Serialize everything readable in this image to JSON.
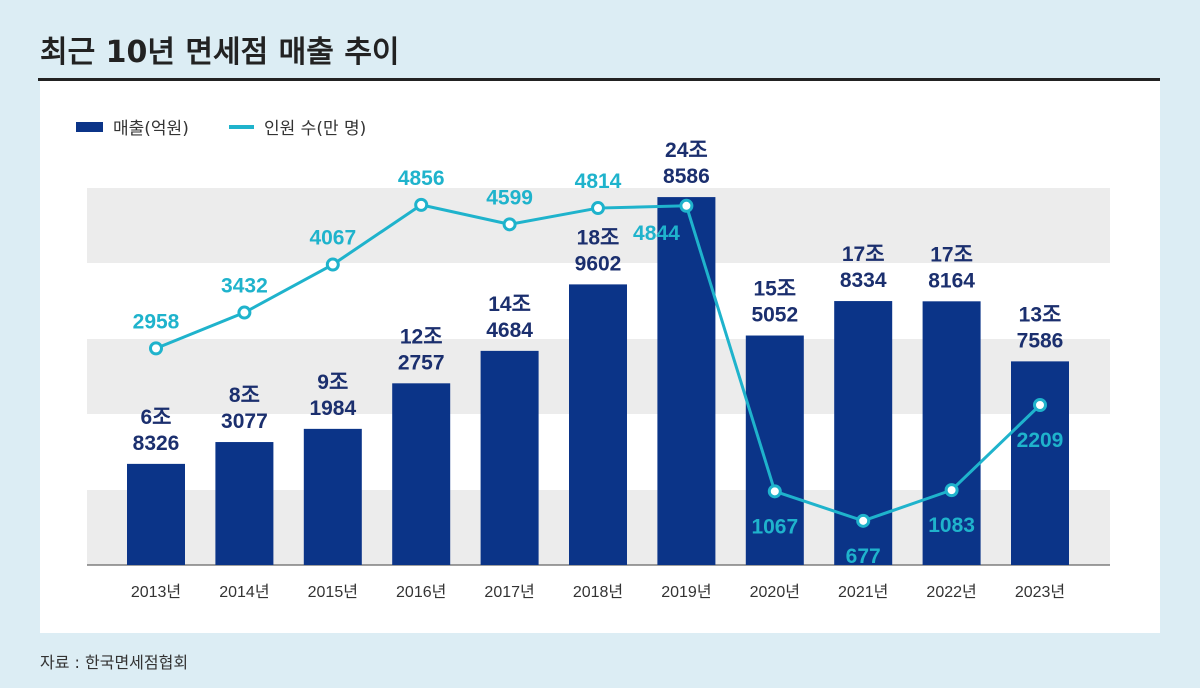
{
  "title": "최근 10년 면세점 매출 추이",
  "source": "자료 : 한국면세점협회",
  "colors": {
    "bar": "#0b3488",
    "line": "#1fb3cc",
    "background": "#dcedf4",
    "band": "#ececec"
  },
  "chart_data": {
    "type": "bar+line",
    "title": "최근 10년 면세점 매출 추이",
    "categories": [
      "2013년",
      "2014년",
      "2015년",
      "2016년",
      "2017년",
      "2018년",
      "2019년",
      "2020년",
      "2021년",
      "2022년",
      "2023년"
    ],
    "series": [
      {
        "name": "매출(억원)",
        "type": "bar",
        "values": [
          68326,
          83077,
          91984,
          122757,
          144684,
          189602,
          248586,
          155052,
          178334,
          178164,
          137586
        ],
        "labels_top": [
          "6조",
          "8조",
          "9조",
          "12조",
          "14조",
          "18조",
          "24조",
          "15조",
          "17조",
          "17조",
          "13조"
        ],
        "labels_bottom": [
          "8326",
          "3077",
          "1984",
          "2757",
          "4684",
          "9602",
          "8586",
          "5052",
          "8334",
          "8164",
          "7586"
        ]
      },
      {
        "name": "인원 수(만 명)",
        "type": "line",
        "values": [
          2958,
          3432,
          4067,
          4856,
          4599,
          4814,
          4844,
          1067,
          677,
          1083,
          2209
        ],
        "labels": [
          "2958",
          "3432",
          "4067",
          "4856",
          "4599",
          "4814",
          "4844",
          "1067",
          "677",
          "1083",
          "2209"
        ]
      }
    ],
    "legend": {
      "position": "top-left",
      "items": [
        "매출(억원)",
        "인원 수(만 명)"
      ]
    },
    "grid": "horizontal bands"
  }
}
